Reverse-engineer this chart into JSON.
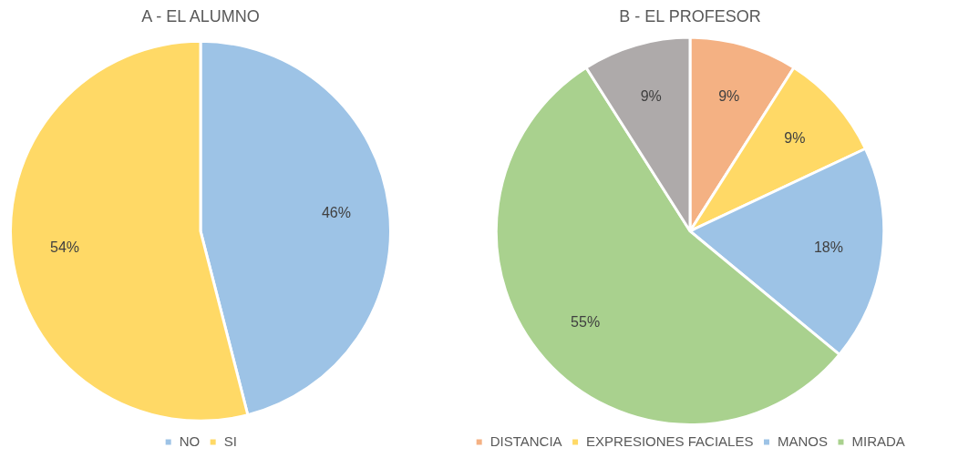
{
  "chart_data": [
    {
      "type": "pie",
      "title": "A - EL ALUMNO",
      "categories": [
        "NO",
        "SI"
      ],
      "values": [
        46,
        54
      ],
      "colors": [
        "#9dc3e6",
        "#ffd966"
      ],
      "value_labels": [
        "46%",
        "54%"
      ],
      "legend": "bottom"
    },
    {
      "type": "pie",
      "title": "B - EL PROFESOR",
      "categories": [
        "DISTANCIA",
        "EXPRESIONES FACIALES",
        "MANOS",
        "MIRADA",
        null
      ],
      "values": [
        9,
        9,
        18,
        55,
        9
      ],
      "colors": [
        "#f4b183",
        "#ffd966",
        "#9dc3e6",
        "#a9d18e",
        "#aeaaaa"
      ],
      "value_labels": [
        "9%",
        "9%",
        "18%",
        "55%",
        "9%"
      ],
      "legend": "bottom"
    }
  ]
}
